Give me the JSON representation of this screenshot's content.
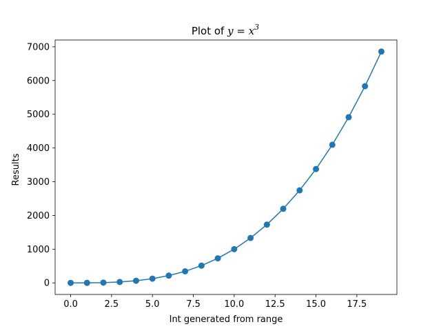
{
  "chart_data": {
    "type": "line",
    "title": "Plot of",
    "title_math": {
      "base": "y = x",
      "exponent": "3"
    },
    "xlabel": "Int generated from range",
    "ylabel": "Results",
    "xlim": [
      -0.95,
      19.95
    ],
    "ylim": [
      -342.95,
      7201.95
    ],
    "xticks": [
      0,
      2.5,
      5,
      7.5,
      10,
      12.5,
      15,
      17.5
    ],
    "xtick_labels": [
      "0.0",
      "2.5",
      "5.0",
      "7.5",
      "10.0",
      "12.5",
      "15.0",
      "17.5"
    ],
    "yticks": [
      0,
      1000,
      2000,
      3000,
      4000,
      5000,
      6000,
      7000
    ],
    "ytick_labels": [
      "0",
      "1000",
      "2000",
      "3000",
      "4000",
      "5000",
      "6000",
      "7000"
    ],
    "grid": false,
    "markers": true,
    "series": [
      {
        "color": "#1f77b4",
        "x": [
          0,
          1,
          2,
          3,
          4,
          5,
          6,
          7,
          8,
          9,
          10,
          11,
          12,
          13,
          14,
          15,
          16,
          17,
          18,
          19
        ],
        "y": [
          0,
          1,
          8,
          27,
          64,
          125,
          216,
          343,
          512,
          729,
          1000,
          1331,
          1728,
          2197,
          2744,
          3375,
          4096,
          4913,
          5832,
          6859
        ]
      }
    ]
  }
}
